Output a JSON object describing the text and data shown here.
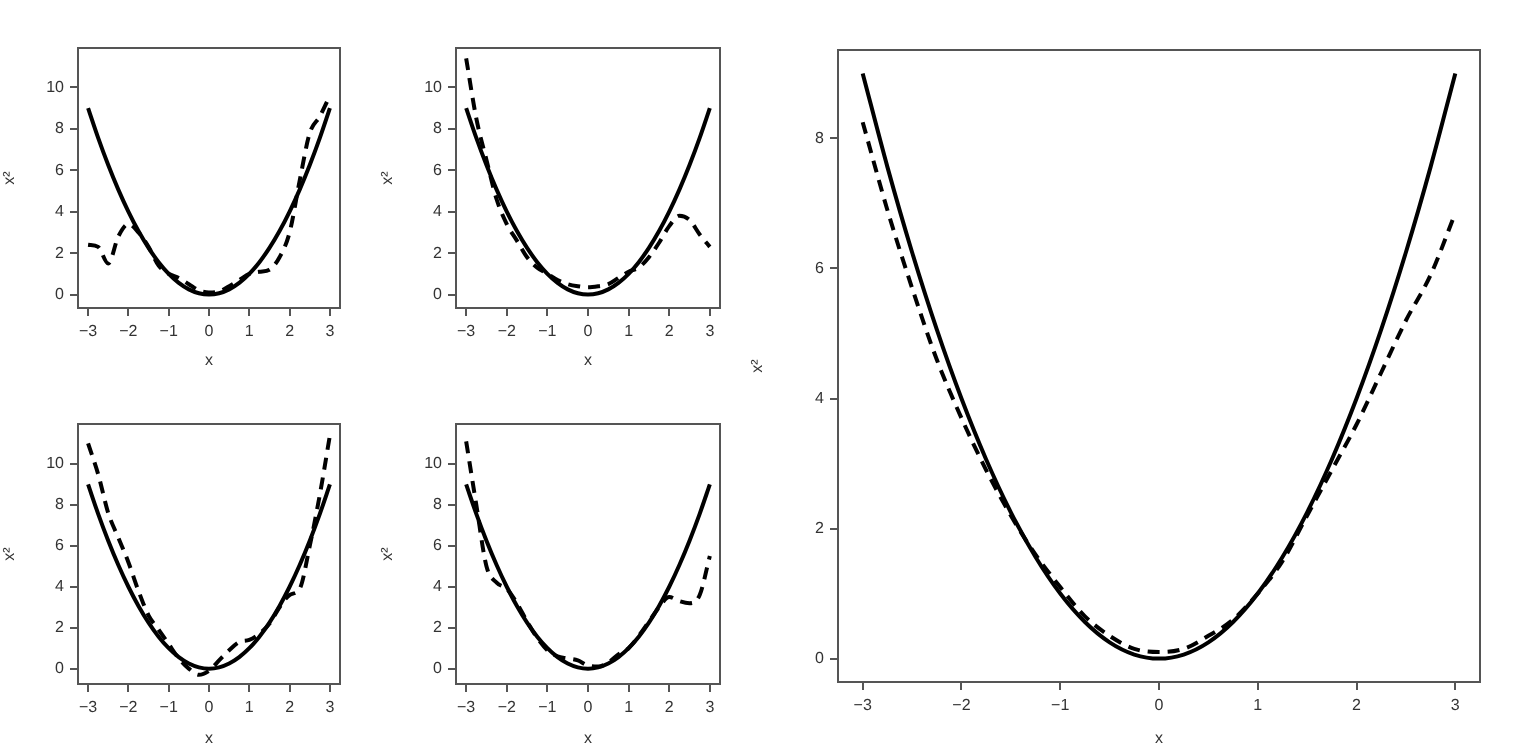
{
  "chart_data": [
    {
      "type": "line",
      "xlabel": "x",
      "ylabel": "x²",
      "marker": "none",
      "x": [
        -3,
        -2.75,
        -2.5,
        -2.25,
        -2,
        -1.75,
        -1.5,
        -1.25,
        -1,
        -0.75,
        -0.5,
        -0.25,
        0,
        0.25,
        0.5,
        0.75,
        1,
        1.25,
        1.5,
        1.75,
        2,
        2.25,
        2.5,
        2.75,
        3
      ],
      "xlim": [
        -3.25,
        3.25
      ],
      "xticks": [
        -3,
        -2,
        -1,
        0,
        1,
        2,
        3
      ],
      "ylim": [
        -0.65,
        11.9
      ],
      "yticks": [
        0,
        2,
        4,
        6,
        8,
        10
      ],
      "series": [
        {
          "color": "#000000",
          "line_style": "solid",
          "values": [
            9,
            7.5625,
            6.25,
            5.0625,
            4,
            3.0625,
            2.25,
            1.5625,
            1,
            0.5625,
            0.25,
            0.0625,
            0,
            0.0625,
            0.25,
            0.5625,
            1,
            1.5625,
            2.25,
            3.0625,
            4,
            5.0625,
            6.25,
            7.5625,
            9
          ]
        },
        {
          "color": "#000000",
          "line_style": "dashed",
          "values": [
            2.4,
            2.3,
            1.5,
            2.8,
            3.4,
            3.0,
            2.3,
            1.4,
            1.0,
            0.8,
            0.5,
            0.2,
            0.1,
            0.15,
            0.4,
            0.7,
            1.0,
            1.1,
            1.2,
            1.8,
            3.0,
            5.5,
            7.8,
            8.6,
            9.6
          ]
        }
      ]
    },
    {
      "type": "line",
      "xlabel": "x",
      "ylabel": "x²",
      "marker": "none",
      "x": [
        -3,
        -2.75,
        -2.5,
        -2.25,
        -2,
        -1.75,
        -1.5,
        -1.25,
        -1,
        -0.75,
        -0.5,
        -0.25,
        0,
        0.25,
        0.5,
        0.75,
        1,
        1.25,
        1.5,
        1.75,
        2,
        2.25,
        2.5,
        2.75,
        3
      ],
      "xlim": [
        -3.25,
        3.25
      ],
      "xticks": [
        -3,
        -2,
        -1,
        0,
        1,
        2,
        3
      ],
      "ylim": [
        -0.65,
        11.9
      ],
      "yticks": [
        0,
        2,
        4,
        6,
        8,
        10
      ],
      "series": [
        {
          "color": "#000000",
          "line_style": "solid",
          "values": [
            9,
            7.5625,
            6.25,
            5.0625,
            4,
            3.0625,
            2.25,
            1.5625,
            1,
            0.5625,
            0.25,
            0.0625,
            0,
            0.0625,
            0.25,
            0.5625,
            1,
            1.5625,
            2.25,
            3.0625,
            4,
            5.0625,
            6.25,
            7.5625,
            9
          ]
        },
        {
          "color": "#000000",
          "line_style": "dashed",
          "values": [
            11.4,
            8.5,
            6.5,
            4.6,
            3.4,
            2.6,
            1.8,
            1.3,
            1.0,
            0.7,
            0.5,
            0.4,
            0.35,
            0.4,
            0.5,
            0.8,
            1.1,
            1.3,
            1.8,
            2.5,
            3.3,
            3.8,
            3.6,
            2.9,
            2.3
          ]
        }
      ]
    },
    {
      "type": "line",
      "xlabel": "x",
      "ylabel": "x²",
      "marker": "none",
      "x": [
        -3,
        -2.75,
        -2.5,
        -2.25,
        -2,
        -1.75,
        -1.5,
        -1.25,
        -1,
        -0.75,
        -0.5,
        -0.25,
        0,
        0.25,
        0.5,
        0.75,
        1,
        1.25,
        1.5,
        1.75,
        2,
        2.25,
        2.5,
        2.75,
        3
      ],
      "xlim": [
        -3.25,
        3.25
      ],
      "xticks": [
        -3,
        -2,
        -1,
        0,
        1,
        2,
        3
      ],
      "ylim": [
        -0.75,
        11.95
      ],
      "yticks": [
        0,
        2,
        4,
        6,
        8,
        10
      ],
      "series": [
        {
          "color": "#000000",
          "line_style": "solid",
          "values": [
            9,
            7.5625,
            6.25,
            5.0625,
            4,
            3.0625,
            2.25,
            1.5625,
            1,
            0.5625,
            0.25,
            0.0625,
            0,
            0.0625,
            0.25,
            0.5625,
            1,
            1.5625,
            2.25,
            3.0625,
            4,
            5.0625,
            6.25,
            7.5625,
            9
          ]
        },
        {
          "color": "#000000",
          "line_style": "dashed",
          "values": [
            11.0,
            9.5,
            7.6,
            6.4,
            5.2,
            3.8,
            2.6,
            1.9,
            1.2,
            0.5,
            0.0,
            -0.3,
            -0.1,
            0.4,
            0.9,
            1.3,
            1.4,
            1.7,
            2.2,
            3.0,
            3.6,
            3.9,
            6.0,
            8.5,
            11.4
          ]
        }
      ]
    },
    {
      "type": "line",
      "xlabel": "x",
      "ylabel": "x²",
      "marker": "none",
      "x": [
        -3,
        -2.75,
        -2.5,
        -2.25,
        -2,
        -1.75,
        -1.5,
        -1.25,
        -1,
        -0.75,
        -0.5,
        -0.25,
        0,
        0.25,
        0.5,
        0.75,
        1,
        1.25,
        1.5,
        1.75,
        2,
        2.25,
        2.5,
        2.75,
        3
      ],
      "xlim": [
        -3.25,
        3.25
      ],
      "xticks": [
        -3,
        -2,
        -1,
        0,
        1,
        2,
        3
      ],
      "ylim": [
        -0.75,
        11.95
      ],
      "yticks": [
        0,
        2,
        4,
        6,
        8,
        10
      ],
      "series": [
        {
          "color": "#000000",
          "line_style": "solid",
          "values": [
            9,
            7.5625,
            6.25,
            5.0625,
            4,
            3.0625,
            2.25,
            1.5625,
            1,
            0.5625,
            0.25,
            0.0625,
            0,
            0.0625,
            0.25,
            0.5625,
            1,
            1.5625,
            2.25,
            3.0625,
            4,
            5.0625,
            6.25,
            7.5625,
            9
          ]
        },
        {
          "color": "#000000",
          "line_style": "dashed",
          "values": [
            11.1,
            8.0,
            5.0,
            4.2,
            3.9,
            3.2,
            2.3,
            1.5,
            0.9,
            0.6,
            0.5,
            0.4,
            0.15,
            0.1,
            0.3,
            0.7,
            1.0,
            1.6,
            2.3,
            3.0,
            3.5,
            3.3,
            3.2,
            3.6,
            5.5
          ]
        }
      ]
    },
    {
      "type": "line",
      "xlabel": "x",
      "ylabel": "x²",
      "marker": "none",
      "x": [
        -3,
        -2.75,
        -2.5,
        -2.25,
        -2,
        -1.75,
        -1.5,
        -1.25,
        -1,
        -0.75,
        -0.5,
        -0.25,
        0,
        0.25,
        0.5,
        0.75,
        1,
        1.25,
        1.5,
        1.75,
        2,
        2.25,
        2.5,
        2.75,
        3
      ],
      "xlim": [
        -3.25,
        3.25
      ],
      "xticks": [
        -3,
        -2,
        -1,
        0,
        1,
        2,
        3
      ],
      "ylim": [
        -0.36,
        9.36
      ],
      "yticks": [
        0,
        2,
        4,
        6,
        8
      ],
      "series": [
        {
          "color": "#000000",
          "line_style": "solid",
          "values": [
            9,
            7.5625,
            6.25,
            5.0625,
            4,
            3.0625,
            2.25,
            1.5625,
            1,
            0.5625,
            0.25,
            0.0625,
            0,
            0.0625,
            0.25,
            0.5625,
            1,
            1.5625,
            2.25,
            3.0625,
            4,
            5.0625,
            6.25,
            7.5625,
            9
          ]
        },
        {
          "color": "#000000",
          "line_style": "dashed",
          "values": [
            8.25,
            6.9,
            5.7,
            4.6,
            3.7,
            2.9,
            2.2,
            1.6,
            1.1,
            0.65,
            0.35,
            0.15,
            0.1,
            0.15,
            0.35,
            0.6,
            1.0,
            1.5,
            2.2,
            2.9,
            3.6,
            4.4,
            5.2,
            5.9,
            6.85
          ]
        }
      ]
    }
  ]
}
